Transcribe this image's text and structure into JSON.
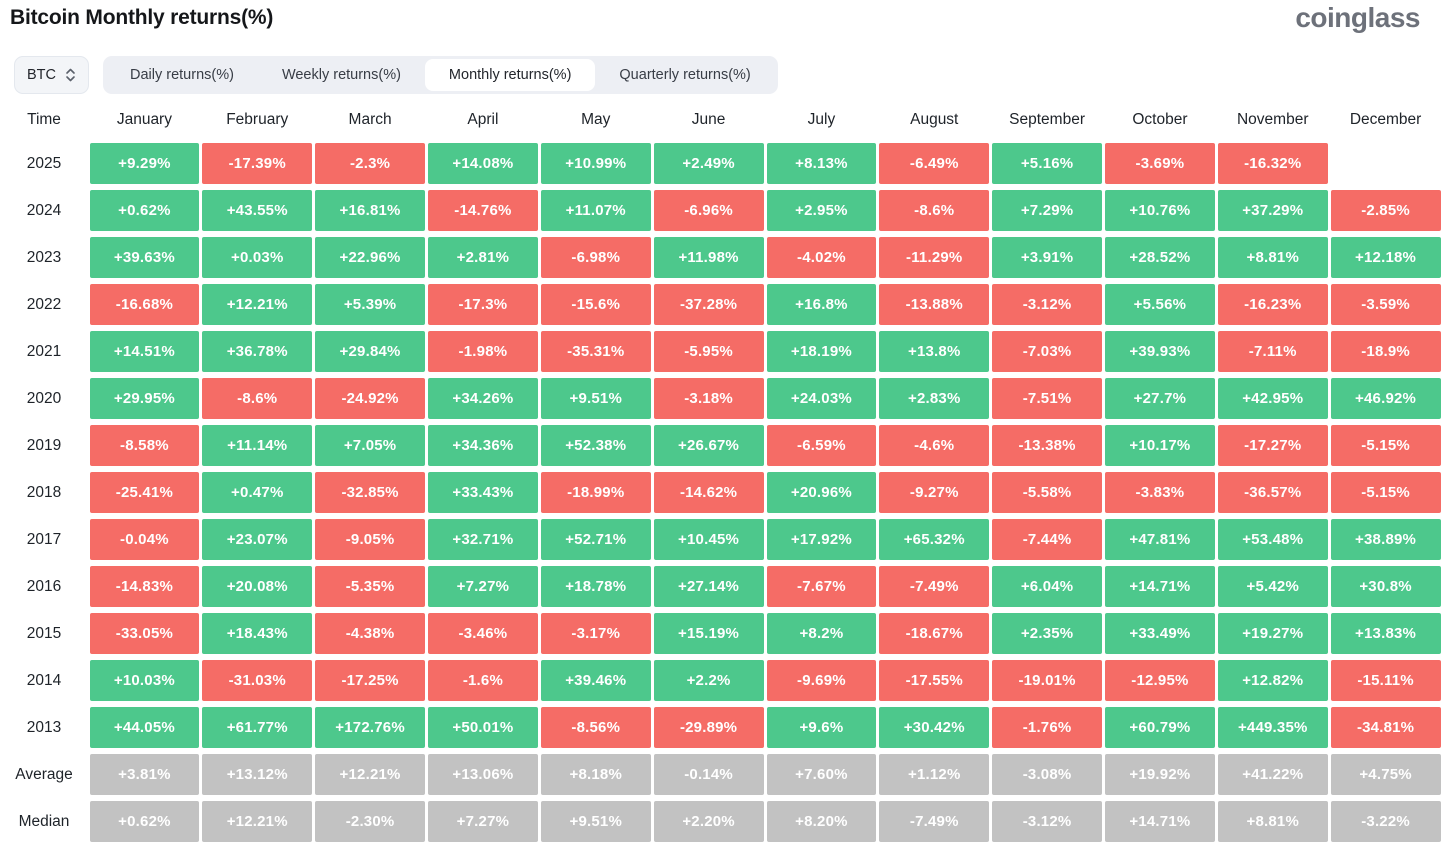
{
  "header": {
    "title": "Bitcoin Monthly returns(%)",
    "logo": "coinglass"
  },
  "controls": {
    "symbol_select": {
      "value": "BTC",
      "icon": "updown-chevron-icon"
    },
    "tabs": [
      {
        "label": "Daily returns(%)",
        "active": false
      },
      {
        "label": "Weekly returns(%)",
        "active": false
      },
      {
        "label": "Monthly returns(%)",
        "active": true
      },
      {
        "label": "Quarterly returns(%)",
        "active": false
      }
    ]
  },
  "colors": {
    "positive": "#4dc88c",
    "negative": "#f56c66",
    "summary": "#c2c2c2",
    "cell_text": "#ffffff"
  },
  "chart_data": {
    "type": "table",
    "title": "Bitcoin Monthly returns(%)",
    "columns": [
      "Time",
      "January",
      "February",
      "March",
      "April",
      "May",
      "June",
      "July",
      "August",
      "September",
      "October",
      "November",
      "December"
    ],
    "rows": [
      {
        "label": "2025",
        "kind": "year",
        "values": [
          "+9.29%",
          "-17.39%",
          "-2.3%",
          "+14.08%",
          "+10.99%",
          "+2.49%",
          "+8.13%",
          "-6.49%",
          "+5.16%",
          "-3.69%",
          "-16.32%",
          ""
        ]
      },
      {
        "label": "2024",
        "kind": "year",
        "values": [
          "+0.62%",
          "+43.55%",
          "+16.81%",
          "-14.76%",
          "+11.07%",
          "-6.96%",
          "+2.95%",
          "-8.6%",
          "+7.29%",
          "+10.76%",
          "+37.29%",
          "-2.85%"
        ]
      },
      {
        "label": "2023",
        "kind": "year",
        "values": [
          "+39.63%",
          "+0.03%",
          "+22.96%",
          "+2.81%",
          "-6.98%",
          "+11.98%",
          "-4.02%",
          "-11.29%",
          "+3.91%",
          "+28.52%",
          "+8.81%",
          "+12.18%"
        ]
      },
      {
        "label": "2022",
        "kind": "year",
        "values": [
          "-16.68%",
          "+12.21%",
          "+5.39%",
          "-17.3%",
          "-15.6%",
          "-37.28%",
          "+16.8%",
          "-13.88%",
          "-3.12%",
          "+5.56%",
          "-16.23%",
          "-3.59%"
        ]
      },
      {
        "label": "2021",
        "kind": "year",
        "values": [
          "+14.51%",
          "+36.78%",
          "+29.84%",
          "-1.98%",
          "-35.31%",
          "-5.95%",
          "+18.19%",
          "+13.8%",
          "-7.03%",
          "+39.93%",
          "-7.11%",
          "-18.9%"
        ]
      },
      {
        "label": "2020",
        "kind": "year",
        "values": [
          "+29.95%",
          "-8.6%",
          "-24.92%",
          "+34.26%",
          "+9.51%",
          "-3.18%",
          "+24.03%",
          "+2.83%",
          "-7.51%",
          "+27.7%",
          "+42.95%",
          "+46.92%"
        ]
      },
      {
        "label": "2019",
        "kind": "year",
        "values": [
          "-8.58%",
          "+11.14%",
          "+7.05%",
          "+34.36%",
          "+52.38%",
          "+26.67%",
          "-6.59%",
          "-4.6%",
          "-13.38%",
          "+10.17%",
          "-17.27%",
          "-5.15%"
        ]
      },
      {
        "label": "2018",
        "kind": "year",
        "values": [
          "-25.41%",
          "+0.47%",
          "-32.85%",
          "+33.43%",
          "-18.99%",
          "-14.62%",
          "+20.96%",
          "-9.27%",
          "-5.58%",
          "-3.83%",
          "-36.57%",
          "-5.15%"
        ]
      },
      {
        "label": "2017",
        "kind": "year",
        "values": [
          "-0.04%",
          "+23.07%",
          "-9.05%",
          "+32.71%",
          "+52.71%",
          "+10.45%",
          "+17.92%",
          "+65.32%",
          "-7.44%",
          "+47.81%",
          "+53.48%",
          "+38.89%"
        ]
      },
      {
        "label": "2016",
        "kind": "year",
        "values": [
          "-14.83%",
          "+20.08%",
          "-5.35%",
          "+7.27%",
          "+18.78%",
          "+27.14%",
          "-7.67%",
          "-7.49%",
          "+6.04%",
          "+14.71%",
          "+5.42%",
          "+30.8%"
        ]
      },
      {
        "label": "2015",
        "kind": "year",
        "values": [
          "-33.05%",
          "+18.43%",
          "-4.38%",
          "-3.46%",
          "-3.17%",
          "+15.19%",
          "+8.2%",
          "-18.67%",
          "+2.35%",
          "+33.49%",
          "+19.27%",
          "+13.83%"
        ]
      },
      {
        "label": "2014",
        "kind": "year",
        "values": [
          "+10.03%",
          "-31.03%",
          "-17.25%",
          "-1.6%",
          "+39.46%",
          "+2.2%",
          "-9.69%",
          "-17.55%",
          "-19.01%",
          "-12.95%",
          "+12.82%",
          "-15.11%"
        ]
      },
      {
        "label": "2013",
        "kind": "year",
        "values": [
          "+44.05%",
          "+61.77%",
          "+172.76%",
          "+50.01%",
          "-8.56%",
          "-29.89%",
          "+9.6%",
          "+30.42%",
          "-1.76%",
          "+60.79%",
          "+449.35%",
          "-34.81%"
        ]
      },
      {
        "label": "Average",
        "kind": "summary",
        "values": [
          "+3.81%",
          "+13.12%",
          "+12.21%",
          "+13.06%",
          "+8.18%",
          "-0.14%",
          "+7.60%",
          "+1.12%",
          "-3.08%",
          "+19.92%",
          "+41.22%",
          "+4.75%"
        ]
      },
      {
        "label": "Median",
        "kind": "summary",
        "values": [
          "+0.62%",
          "+12.21%",
          "-2.30%",
          "+7.27%",
          "+9.51%",
          "+2.20%",
          "+8.20%",
          "-7.49%",
          "-3.12%",
          "+14.71%",
          "+8.81%",
          "-3.22%"
        ]
      }
    ]
  }
}
